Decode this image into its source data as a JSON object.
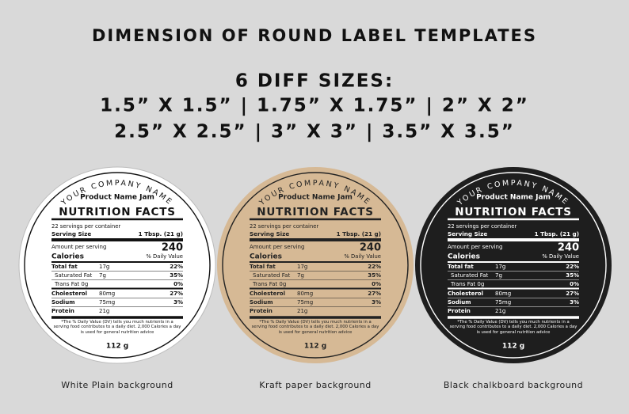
{
  "header": {
    "title": "DIMENSION OF ROUND LABEL TEMPLATES",
    "subtitle": "6 DIFF SIZES:",
    "sizes_line_1": "1.5” X 1.5” | 1.75” X 1.75” | 2” X 2”",
    "sizes_line_2": "2.5” X 2.5” | 3” X 3” | 3.5” X 3.5”"
  },
  "label": {
    "company": "YOUR COMPANY NAME",
    "product": "Product Name Jam",
    "heading": "NUTRITION FACTS",
    "servings": "22 servings per container",
    "serving_size": [
      "Serving Size",
      "1 Tbsp. (21 g)"
    ],
    "amount": "Amount per serving",
    "calories_value": "240",
    "calories": "Calories",
    "daily_value": "% Daily Value",
    "rows": [
      [
        "Total fat",
        "17g",
        "22%"
      ],
      [
        "Saturated Fat",
        "7g",
        "35%"
      ],
      [
        "Trans Fat 0g",
        "",
        "0%"
      ],
      [
        "Cholesterol",
        "80mg",
        "27%"
      ],
      [
        "Sodium",
        "75mg",
        "3%"
      ],
      [
        "Protein",
        "21g"
      ]
    ],
    "footnote": "*The % Daily Value (DV) tells you much nutrients in a serving food contributes to a daily diet. 2,000 Calories a day is used for general nutrition advice",
    "weight": "112 g"
  },
  "captions": [
    "White Plain background",
    "Kraft paper background",
    "Black chalkboard background"
  ]
}
